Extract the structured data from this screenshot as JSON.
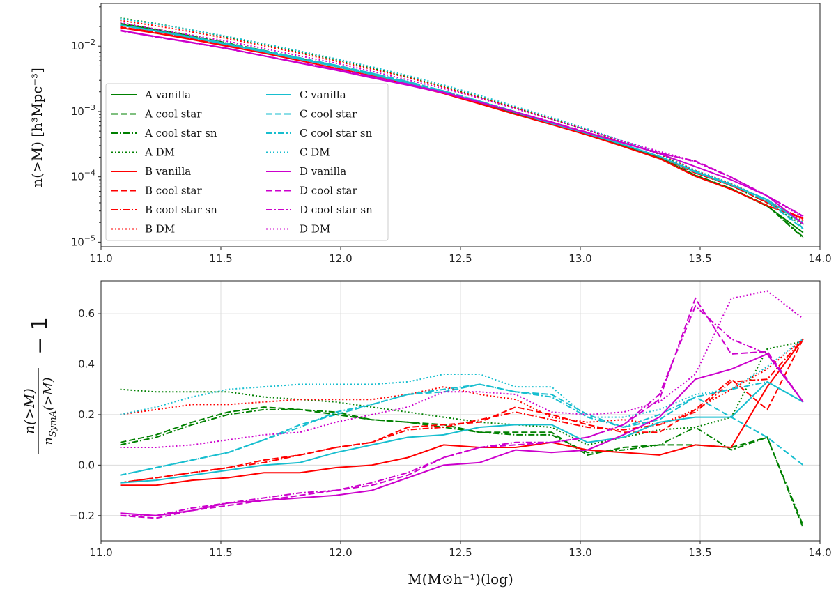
{
  "chart_data": [
    {
      "type": "line",
      "id": "cumulative",
      "yscale": "log",
      "ylabel": "n(>M) [h³Mpc⁻³]",
      "xlabel": "",
      "xlim": [
        11.0,
        14.0
      ],
      "ylim": [
        8.5e-06,
        0.045
      ],
      "xticks": [
        "11.0",
        "11.5",
        "12.0",
        "12.5",
        "13.0",
        "13.5",
        "14.0"
      ],
      "xtick_values": [
        11.0,
        11.5,
        12.0,
        12.5,
        13.0,
        13.5,
        14.0
      ],
      "ytick_labels": [
        {
          "value": 1e-05,
          "base": "10",
          "exp": "−5"
        },
        {
          "value": 0.0001,
          "base": "10",
          "exp": "−4"
        },
        {
          "value": 0.001,
          "base": "10",
          "exp": "−3"
        },
        {
          "value": 0.01,
          "base": "10",
          "exp": "−2"
        }
      ],
      "grid": false,
      "legend": "lower-left, 2 columns",
      "x": [
        11.08,
        11.23,
        11.38,
        11.53,
        11.68,
        11.83,
        11.98,
        12.13,
        12.28,
        12.43,
        12.58,
        12.73,
        12.88,
        13.03,
        13.18,
        13.33,
        13.48,
        13.63,
        13.78,
        13.93
      ],
      "series": [
        {
          "name": "A vanilla",
          "color": "#008000",
          "style": "solid",
          "values": [
            0.0215,
            0.0175,
            0.0138,
            0.0107,
            0.0083,
            0.0064,
            0.0049,
            0.00368,
            0.00272,
            0.00196,
            0.00137,
            0.00094,
            0.00065,
            0.000445,
            0.0003,
            0.000195,
            0.000104,
            6.5e-05,
            3.55e-05,
            1.4e-05
          ]
        },
        {
          "name": "A cool star",
          "color": "#008000",
          "style": "dashed",
          "values": [
            0.0222,
            0.0181,
            0.0143,
            0.0111,
            0.0086,
            0.0066,
            0.005,
            0.00376,
            0.00277,
            0.00198,
            0.00139,
            0.00095,
            0.00066,
            0.00045,
            0.0003,
            0.000196,
            0.000106,
            6.6e-05,
            3.65e-05,
            1.2e-05
          ]
        },
        {
          "name": "A cool star sn",
          "color": "#008000",
          "style": "dashdot",
          "values": [
            0.0221,
            0.018,
            0.0142,
            0.011,
            0.0085,
            0.0065,
            0.005,
            0.00374,
            0.00276,
            0.00197,
            0.00138,
            0.00095,
            0.00066,
            0.000448,
            0.0003,
            0.000195,
            0.000105,
            6.55e-05,
            3.62e-05,
            1.15e-05
          ]
        },
        {
          "name": "A DM",
          "color": "#008000",
          "style": "dotted",
          "values": [
            0.027,
            0.0222,
            0.0176,
            0.0137,
            0.0106,
            0.0082,
            0.0062,
            0.00463,
            0.00337,
            0.0024,
            0.00167,
            0.00114,
            0.00077,
            0.00052,
            0.00034,
            0.000222,
            0.000119,
            7.3e-05,
            4.05e-05,
            1.8e-05
          ]
        },
        {
          "name": "B vanilla",
          "color": "#ff0000",
          "style": "solid",
          "values": [
            0.0192,
            0.0158,
            0.0126,
            0.0099,
            0.0078,
            0.006,
            0.0046,
            0.0035,
            0.0026,
            0.00188,
            0.00131,
            0.0009,
            0.00063,
            0.000435,
            0.00029,
            0.00019,
            0.000102,
            6.4e-05,
            3.6e-05,
            2.3e-05
          ]
        },
        {
          "name": "B cool star",
          "color": "#ff0000",
          "style": "dashed",
          "values": [
            0.0196,
            0.0163,
            0.0131,
            0.0104,
            0.0082,
            0.0064,
            0.0049,
            0.00374,
            0.00278,
            0.00202,
            0.00141,
            0.00097,
            0.00068,
            0.000465,
            0.00031,
            0.000204,
            0.000115,
            7.4e-05,
            4e-05,
            2.3e-05
          ]
        },
        {
          "name": "B cool star sn",
          "color": "#ff0000",
          "style": "dashdot",
          "values": [
            0.0196,
            0.0163,
            0.0131,
            0.0104,
            0.0082,
            0.0064,
            0.0049,
            0.00372,
            0.00277,
            0.00201,
            0.00141,
            0.00098,
            0.00068,
            0.000462,
            0.00031,
            0.000202,
            0.000114,
            7.35e-05,
            4.1e-05,
            2.25e-05
          ]
        },
        {
          "name": "B DM",
          "color": "#ff0000",
          "style": "dotted",
          "values": [
            0.0248,
            0.0205,
            0.0165,
            0.013,
            0.0101,
            0.0078,
            0.0059,
            0.00445,
            0.0033,
            0.00235,
            0.00163,
            0.00113,
            0.00076,
            0.00052,
            0.00034,
            0.000225,
            0.000125,
            7.8e-05,
            4.4e-05,
            2.1e-05
          ]
        },
        {
          "name": "C vanilla",
          "color": "#17becf",
          "style": "solid",
          "values": [
            0.0209,
            0.017,
            0.0135,
            0.0105,
            0.0082,
            0.0063,
            0.0049,
            0.00369,
            0.00273,
            0.00197,
            0.00139,
            0.00096,
            0.00066,
            0.000458,
            0.00031,
            0.000205,
            0.000118,
            7.5e-05,
            4.5e-05,
            1.9e-05
          ]
        },
        {
          "name": "C cool star",
          "color": "#17becf",
          "style": "dashed",
          "values": [
            0.021,
            0.0172,
            0.0138,
            0.0108,
            0.0085,
            0.0066,
            0.0051,
            0.00385,
            0.00286,
            0.00206,
            0.00144,
            0.00099,
            0.00068,
            0.000465,
            0.00031,
            0.000205,
            0.00012,
            7.6e-05,
            4.2e-05,
            1.6e-05
          ]
        },
        {
          "name": "C cool star sn",
          "color": "#17becf",
          "style": "dashdot",
          "values": [
            0.021,
            0.0172,
            0.0138,
            0.0109,
            0.0085,
            0.0066,
            0.0051,
            0.00386,
            0.00287,
            0.00206,
            0.00144,
            0.00099,
            0.00068,
            0.000468,
            0.00031,
            0.000206,
            0.000121,
            7.6e-05,
            4.25e-05,
            1.65e-05
          ]
        },
        {
          "name": "C DM",
          "color": "#17becf",
          "style": "dotted",
          "values": [
            0.0265,
            0.0219,
            0.0177,
            0.014,
            0.0109,
            0.0084,
            0.0064,
            0.00482,
            0.00354,
            0.00254,
            0.00176,
            0.00119,
            0.00081,
            0.00054,
            0.00035,
            0.000228,
            0.000126,
            7.9e-05,
            4.4e-05,
            2e-05
          ]
        },
        {
          "name": "D vanilla",
          "color": "#cc00cc",
          "style": "solid",
          "values": [
            0.0175,
            0.014,
            0.0114,
            0.0092,
            0.0071,
            0.0055,
            0.0043,
            0.00327,
            0.00253,
            0.00192,
            0.00138,
            0.00097,
            0.00068,
            0.00047,
            0.00033,
            0.000227,
            0.000143,
            9e-05,
            5.1e-05,
            1.9e-05
          ]
        },
        {
          "name": "D cool star",
          "color": "#cc00cc",
          "style": "dashed",
          "values": [
            0.0172,
            0.0138,
            0.0113,
            0.0091,
            0.0071,
            0.0056,
            0.0044,
            0.00343,
            0.00263,
            0.00196,
            0.00139,
            0.00098,
            0.00069,
            0.000475,
            0.00033,
            0.00023,
            0.000175,
            9.9e-05,
            5.1e-05,
            2.5e-05
          ]
        },
        {
          "name": "D cool star sn",
          "color": "#cc00cc",
          "style": "dashdot",
          "values": [
            0.0172,
            0.0138,
            0.0113,
            0.0091,
            0.0071,
            0.0056,
            0.0044,
            0.00342,
            0.00262,
            0.00196,
            0.00139,
            0.00098,
            0.00069,
            0.000478,
            0.00033,
            0.000235,
            0.00017,
            9.8e-05,
            5.1e-05,
            2.5e-05
          ]
        },
        {
          "name": "D DM",
          "color": "#cc00cc",
          "style": "dotted",
          "values": [
            0.023,
            0.0182,
            0.0147,
            0.0118,
            0.0092,
            0.0071,
            0.0055,
            0.00412,
            0.00305,
            0.00224,
            0.0016,
            0.0011,
            0.00076,
            0.00052,
            0.00035,
            0.000245,
            0.000172,
            9.8e-05,
            5.1e-05,
            2.4e-05
          ]
        }
      ]
    },
    {
      "type": "line",
      "id": "ratio",
      "yscale": "linear",
      "ylabel_numerator": "n(>M)",
      "ylabel_denominator": "n",
      "ylabel_denominator_sub": "SymA",
      "ylabel_denominator_tail": "(>M)",
      "ylabel_suffix": "− 1",
      "xlabel": "M(M⊙h⁻¹)(log)",
      "xlim": [
        11.0,
        14.0
      ],
      "ylim": [
        -0.3,
        0.73
      ],
      "xticks": [
        "11.0",
        "11.5",
        "12.0",
        "12.5",
        "13.0",
        "13.5",
        "14.0"
      ],
      "xtick_values": [
        11.0,
        11.5,
        12.0,
        12.5,
        13.0,
        13.5,
        14.0
      ],
      "yticks": [
        "−0.2",
        "0.0",
        "0.2",
        "0.4",
        "0.6"
      ],
      "ytick_values": [
        -0.2,
        0.0,
        0.2,
        0.4,
        0.6
      ],
      "grid": true,
      "x": [
        11.08,
        11.23,
        11.38,
        11.53,
        11.68,
        11.83,
        11.98,
        12.13,
        12.28,
        12.43,
        12.58,
        12.73,
        12.88,
        13.03,
        13.18,
        13.33,
        13.48,
        13.63,
        13.78,
        13.93
      ],
      "series": [
        {
          "name": "A cool star",
          "color": "#008000",
          "style": "dashed",
          "values": [
            0.09,
            0.12,
            0.17,
            0.21,
            0.23,
            0.22,
            0.2,
            0.18,
            0.17,
            0.16,
            0.13,
            0.13,
            0.13,
            0.04,
            0.07,
            0.08,
            0.08,
            0.07,
            0.11,
            -0.25
          ]
        },
        {
          "name": "A cool star sn",
          "color": "#008000",
          "style": "dashdot",
          "values": [
            0.08,
            0.11,
            0.16,
            0.2,
            0.22,
            0.22,
            0.21,
            0.18,
            0.17,
            0.15,
            0.13,
            0.12,
            0.12,
            0.05,
            0.06,
            0.08,
            0.15,
            0.06,
            0.11,
            -0.24
          ]
        },
        {
          "name": "A DM",
          "color": "#008000",
          "style": "dotted",
          "values": [
            0.3,
            0.29,
            0.29,
            0.29,
            0.27,
            0.26,
            0.25,
            0.23,
            0.21,
            0.19,
            0.17,
            0.16,
            0.15,
            0.08,
            0.11,
            0.14,
            0.15,
            0.19,
            0.46,
            0.49
          ]
        },
        {
          "name": "B vanilla",
          "color": "#ff0000",
          "style": "solid",
          "values": [
            -0.08,
            -0.08,
            -0.06,
            -0.05,
            -0.03,
            -0.03,
            -0.01,
            0.0,
            0.03,
            0.08,
            0.07,
            0.07,
            0.09,
            0.06,
            0.05,
            0.04,
            0.08,
            0.07,
            0.31,
            0.5
          ]
        },
        {
          "name": "B cool star",
          "color": "#ff0000",
          "style": "dashed",
          "values": [
            -0.07,
            -0.05,
            -0.03,
            -0.01,
            0.02,
            0.04,
            0.07,
            0.09,
            0.15,
            0.16,
            0.17,
            0.23,
            0.2,
            0.16,
            0.13,
            0.13,
            0.22,
            0.34,
            0.22,
            0.5
          ]
        },
        {
          "name": "B cool star sn",
          "color": "#ff0000",
          "style": "dashdot",
          "values": [
            -0.07,
            -0.05,
            -0.03,
            -0.01,
            0.01,
            0.04,
            0.07,
            0.09,
            0.14,
            0.15,
            0.18,
            0.21,
            0.18,
            0.15,
            0.14,
            0.16,
            0.21,
            0.33,
            0.34,
            0.5
          ]
        },
        {
          "name": "B DM",
          "color": "#ff0000",
          "style": "dotted",
          "values": [
            0.2,
            0.22,
            0.24,
            0.24,
            0.25,
            0.26,
            0.26,
            0.26,
            0.28,
            0.31,
            0.28,
            0.26,
            0.19,
            0.17,
            0.18,
            0.16,
            0.22,
            0.3,
            0.38,
            0.5
          ]
        },
        {
          "name": "C vanilla",
          "color": "#17becf",
          "style": "solid",
          "values": [
            -0.07,
            -0.06,
            -0.04,
            -0.02,
            0.0,
            0.01,
            0.05,
            0.08,
            0.11,
            0.12,
            0.15,
            0.16,
            0.16,
            0.09,
            0.11,
            0.17,
            0.19,
            0.19,
            0.33,
            0.25
          ]
        },
        {
          "name": "C cool star",
          "color": "#17becf",
          "style": "dashed",
          "values": [
            -0.04,
            -0.01,
            0.02,
            0.05,
            0.1,
            0.16,
            0.2,
            0.24,
            0.28,
            0.29,
            0.32,
            0.29,
            0.28,
            0.2,
            0.15,
            0.18,
            0.27,
            0.19,
            0.11,
            0.0
          ]
        },
        {
          "name": "C cool star sn",
          "color": "#17becf",
          "style": "dashdot",
          "values": [
            -0.04,
            -0.01,
            0.02,
            0.05,
            0.1,
            0.15,
            0.21,
            0.24,
            0.28,
            0.3,
            0.32,
            0.29,
            0.27,
            0.19,
            0.15,
            0.2,
            0.27,
            0.3,
            0.33,
            0.25
          ]
        },
        {
          "name": "C DM",
          "color": "#17becf",
          "style": "dotted",
          "values": [
            0.2,
            0.23,
            0.27,
            0.3,
            0.31,
            0.32,
            0.32,
            0.32,
            0.33,
            0.36,
            0.36,
            0.31,
            0.31,
            0.19,
            0.19,
            0.22,
            0.28,
            0.3,
            0.39,
            0.5
          ]
        },
        {
          "name": "D vanilla",
          "color": "#cc00cc",
          "style": "solid",
          "values": [
            -0.19,
            -0.2,
            -0.18,
            -0.15,
            -0.14,
            -0.13,
            -0.12,
            -0.1,
            -0.05,
            0.0,
            0.01,
            0.06,
            0.05,
            0.06,
            0.12,
            0.19,
            0.34,
            0.38,
            0.44,
            0.25
          ]
        },
        {
          "name": "D cool star",
          "color": "#cc00cc",
          "style": "dashed",
          "values": [
            -0.2,
            -0.21,
            -0.18,
            -0.16,
            -0.14,
            -0.12,
            -0.1,
            -0.08,
            -0.04,
            0.03,
            0.07,
            0.08,
            0.09,
            0.11,
            0.16,
            0.26,
            0.66,
            0.44,
            0.45,
            0.25
          ]
        },
        {
          "name": "D cool star sn",
          "color": "#cc00cc",
          "style": "dashdot",
          "values": [
            -0.2,
            -0.2,
            -0.17,
            -0.15,
            -0.13,
            -0.11,
            -0.1,
            -0.07,
            -0.03,
            0.03,
            0.07,
            0.09,
            0.09,
            0.11,
            0.16,
            0.28,
            0.63,
            0.5,
            0.44,
            0.25
          ]
        },
        {
          "name": "D DM",
          "color": "#cc00cc",
          "style": "dotted",
          "values": [
            0.07,
            0.07,
            0.08,
            0.1,
            0.12,
            0.13,
            0.17,
            0.2,
            0.23,
            0.29,
            0.29,
            0.28,
            0.21,
            0.2,
            0.21,
            0.25,
            0.36,
            0.66,
            0.69,
            0.58
          ]
        }
      ]
    }
  ]
}
